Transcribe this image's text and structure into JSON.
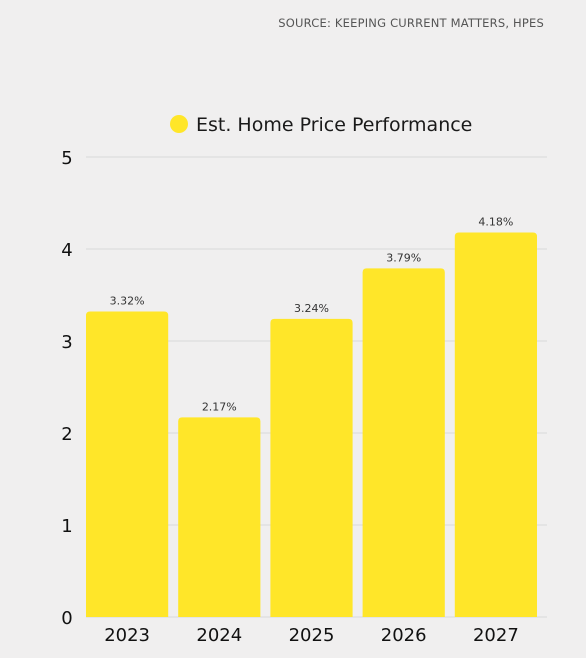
{
  "source_note": "SOURCE: KEEPING CURRENT MATTERS, HPES",
  "colors": {
    "background": "#f0efef",
    "bar": "#ffe629",
    "grid": "#d8d8d8"
  },
  "chart_data": {
    "type": "bar",
    "categories": [
      "2023",
      "2024",
      "2025",
      "2026",
      "2027"
    ],
    "series": [
      {
        "name": "Est. Home Price Performance",
        "values": [
          3.32,
          2.17,
          3.24,
          3.79,
          4.18
        ],
        "labels": [
          "3.32%",
          "2.17%",
          "3.24%",
          "3.79%",
          "4.18%"
        ]
      }
    ],
    "ylim": [
      0,
      5
    ],
    "yticks": [
      "0",
      "1",
      "2",
      "3",
      "4",
      "5"
    ],
    "grid": true,
    "legend_position": "top-center"
  }
}
